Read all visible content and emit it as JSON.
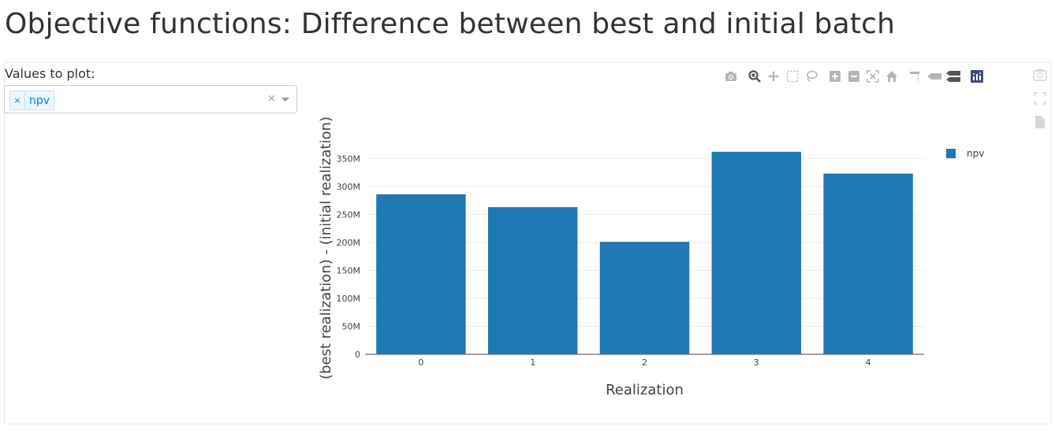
{
  "page": {
    "title": "Objective functions: Difference between best and initial batch"
  },
  "controls": {
    "values_label": "Values to plot:",
    "selected_values": [
      "npv"
    ],
    "remove_symbol": "×",
    "clear_symbol": "×"
  },
  "modebar": {
    "icons": [
      "camera-icon",
      "zoom-icon",
      "pan-icon",
      "box-select-icon",
      "lasso-icon",
      "zoom-in-icon",
      "zoom-out-icon",
      "autoscale-icon",
      "reset-axes-icon",
      "spike-lines-icon",
      "hover-closest-icon",
      "hover-compare-icon",
      "plotly-logo-icon"
    ]
  },
  "side_tools": {
    "icons": [
      "screenshot-icon",
      "fullscreen-icon",
      "download-data-icon"
    ]
  },
  "chart_data": {
    "type": "bar",
    "categories": [
      "0",
      "1",
      "2",
      "3",
      "4"
    ],
    "series": [
      {
        "name": "npv",
        "values": [
          286000000,
          263000000,
          201000000,
          362000000,
          323000000
        ],
        "color": "#1f77b4"
      }
    ],
    "xlabel": "Realization",
    "ylabel": "(best realization) - (initial realization)",
    "yticks": [
      0,
      50000000,
      100000000,
      150000000,
      200000000,
      250000000,
      300000000,
      350000000
    ],
    "ytick_labels": [
      "0",
      "50M",
      "100M",
      "150M",
      "200M",
      "250M",
      "300M",
      "350M"
    ],
    "ylim": [
      0,
      380000000
    ],
    "grid": true,
    "legend_position": "top-right"
  }
}
